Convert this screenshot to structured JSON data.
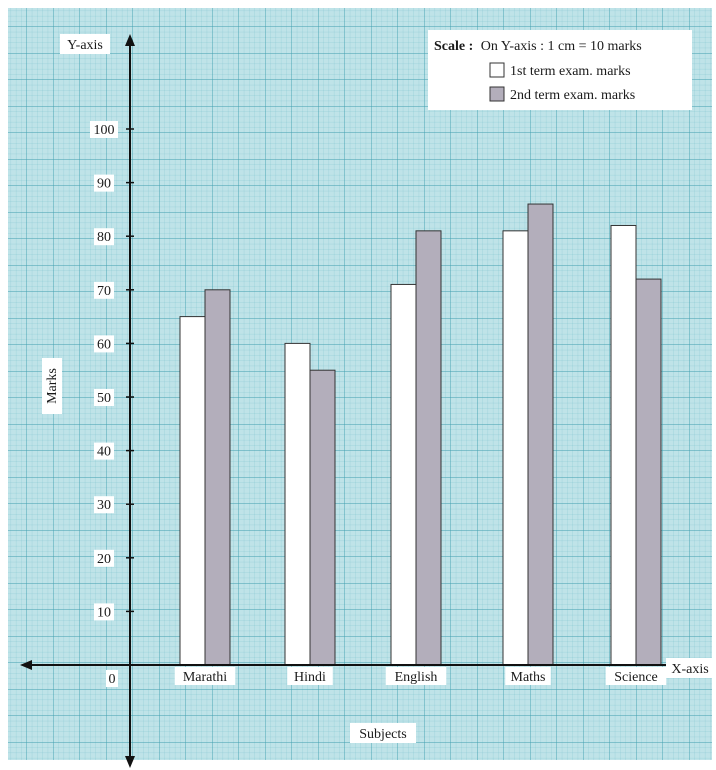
{
  "chart_data": {
    "type": "bar",
    "categories": [
      "Marathi",
      "Hindi",
      "English",
      "Maths",
      "Science"
    ],
    "series": [
      {
        "name": "1st term exam. marks",
        "values": [
          65,
          60,
          71,
          81,
          82
        ],
        "color": "#ffffff"
      },
      {
        "name": "2nd term exam. marks",
        "values": [
          70,
          55,
          81,
          86,
          72
        ],
        "color": "#b3aebb"
      }
    ],
    "xlabel": "Subjects",
    "ylabel": "Marks",
    "x_axis_label": "X-axis",
    "y_axis_label": "Y-axis",
    "yticks": [
      0,
      10,
      20,
      30,
      40,
      50,
      60,
      70,
      80,
      90,
      100
    ],
    "ylim": [
      0,
      100
    ],
    "grid": true,
    "legend_position": "top-right",
    "scale_label": "Scale :",
    "scale_text": "On Y-axis : 1 cm = 10 marks"
  },
  "colors": {
    "grid_background": "#bfe3e8",
    "grid_line": "#4ba9b8",
    "bar_outline": "#333333",
    "axis": "#111111"
  }
}
